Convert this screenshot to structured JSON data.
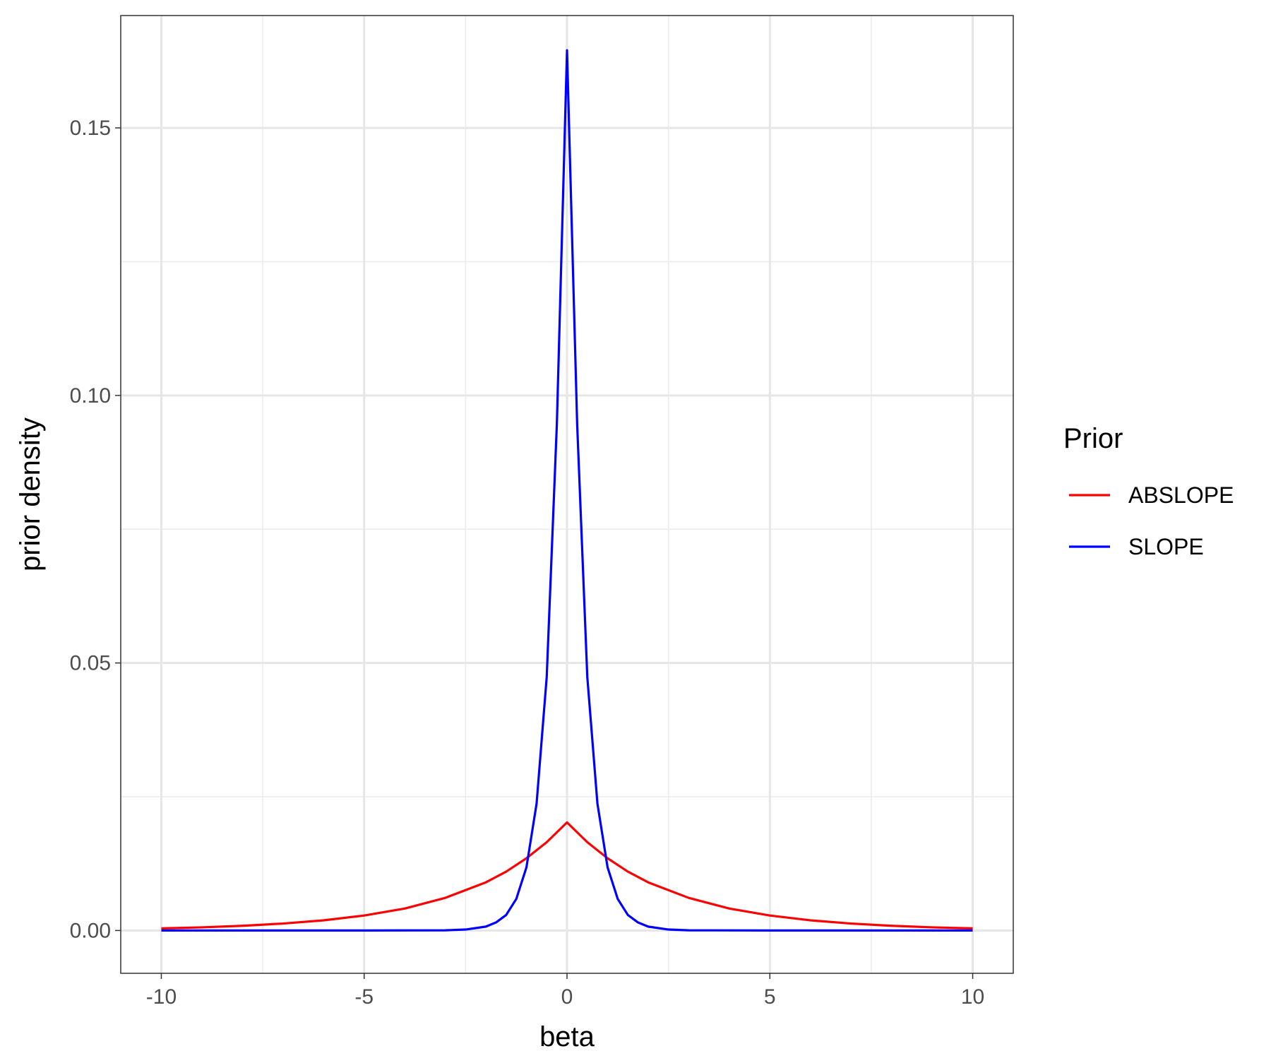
{
  "chart_data": {
    "type": "line",
    "title": "",
    "xlabel": "beta",
    "ylabel": "prior density",
    "xlim": [
      -11,
      11
    ],
    "ylim": [
      -0.008,
      0.171
    ],
    "x_ticks": [
      -10,
      -5,
      0,
      5,
      10
    ],
    "x_tick_labels": [
      "-10",
      "-5",
      "0",
      "5",
      "10"
    ],
    "y_ticks": [
      0.0,
      0.05,
      0.1,
      0.15
    ],
    "y_tick_labels": [
      "0.00",
      "0.05",
      "0.10",
      "0.15"
    ],
    "grid": true,
    "legend": {
      "title": "Prior",
      "placement": "right"
    },
    "series": [
      {
        "name": "ABSLOPE",
        "color": "#ff0000",
        "x": [
          -10,
          -9,
          -8,
          -7,
          -6,
          -5,
          -4,
          -3,
          -2,
          -1.5,
          -1,
          -0.5,
          0,
          0.5,
          1,
          1.5,
          2,
          3,
          4,
          5,
          6,
          7,
          8,
          9,
          10
        ],
        "y": [
          0.0004,
          0.00059,
          0.00088,
          0.0013,
          0.0019,
          0.0028,
          0.0041,
          0.0061,
          0.009,
          0.011,
          0.0135,
          0.0165,
          0.0202,
          0.0165,
          0.0135,
          0.011,
          0.009,
          0.0061,
          0.0041,
          0.0028,
          0.0019,
          0.0013,
          0.00088,
          0.00059,
          0.0004
        ]
      },
      {
        "name": "SLOPE",
        "color": "#0000ff",
        "x": [
          -10,
          -5,
          -3,
          -2.5,
          -2,
          -1.75,
          -1.5,
          -1.25,
          -1,
          -0.75,
          -0.5,
          -0.25,
          0,
          0.25,
          0.5,
          0.75,
          1,
          1.25,
          1.5,
          1.75,
          2,
          2.5,
          3,
          5,
          10
        ],
        "y": [
          0,
          0,
          4e-05,
          0.00018,
          0.00073,
          0.0015,
          0.0029,
          0.0059,
          0.0118,
          0.0237,
          0.0474,
          0.0947,
          0.1645,
          0.0947,
          0.0474,
          0.0237,
          0.0118,
          0.0059,
          0.0029,
          0.0015,
          0.00073,
          0.00018,
          4e-05,
          0,
          0
        ]
      }
    ]
  }
}
